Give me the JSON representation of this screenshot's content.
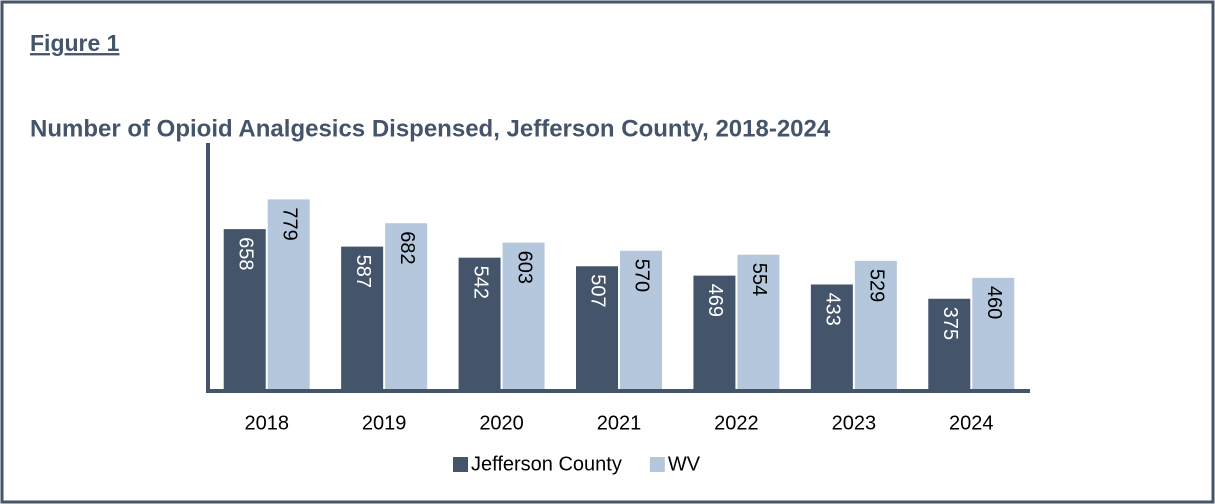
{
  "figure_label": "Figure 1",
  "chart_data": {
    "type": "bar",
    "title": "Number of Opioid Analgesics Dispensed, Jefferson County, 2018-2024",
    "categories": [
      "2018",
      "2019",
      "2020",
      "2021",
      "2022",
      "2023",
      "2024"
    ],
    "series": [
      {
        "name": "Jefferson County",
        "color": "#44546a",
        "values": [
          658,
          587,
          542,
          507,
          469,
          433,
          375
        ]
      },
      {
        "name": "WV",
        "color": "#b4c7dc",
        "values": [
          779,
          682,
          603,
          570,
          554,
          529,
          460
        ]
      }
    ],
    "ylim": [
      0,
      1000
    ],
    "legend": "bottom"
  }
}
